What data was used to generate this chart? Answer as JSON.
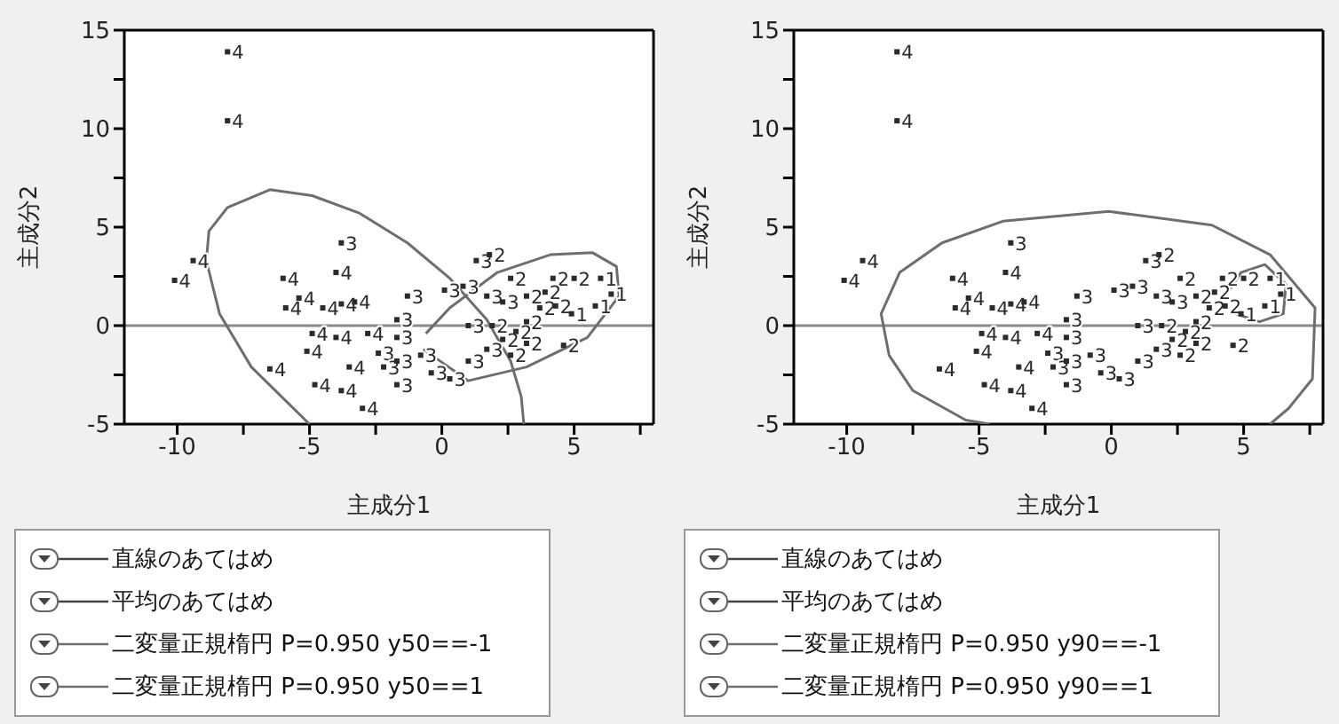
{
  "chart_data": [
    {
      "type": "scatter",
      "xlabel": "主成分1",
      "ylabel": "主成分2",
      "xlim": [
        -12,
        8
      ],
      "ylim": [
        -5,
        15
      ],
      "xticks": [
        -10,
        {
          "value": -7.5,
          "label": null
        },
        -5,
        {
          "value": -2.5,
          "label": null
        },
        0,
        {
          "value": 2.5,
          "label": null
        },
        5,
        {
          "value": 7.5,
          "label": null
        }
      ],
      "yticks": [
        -5,
        {
          "value": -2.5,
          "label": null
        },
        0,
        {
          "value": 2.5,
          "label": null
        },
        5,
        {
          "value": 7.5,
          "label": null
        },
        10,
        {
          "value": 12.5,
          "label": null
        },
        15
      ],
      "marker": "square",
      "legend": "bottom",
      "annotations": [
        "直線のあてはめ",
        "平均のあてはめ"
      ],
      "ref_lines": [
        {
          "axis": "y",
          "value": 0,
          "color": "#8a8a8a"
        }
      ],
      "series": [
        {
          "name": "4",
          "color": "#2b2b2b",
          "x": [
            -8.1,
            -8.1,
            -9.4,
            -10.1,
            -6.0,
            -4.0,
            -5.9,
            -5.4,
            -4.5,
            -3.8,
            -3.3,
            -4.9,
            -4.0,
            -5.1,
            -6.5,
            -4.8,
            -3.8,
            -3.0,
            -3.5,
            -2.8
          ],
          "values": [
            13.9,
            10.4,
            3.3,
            2.3,
            2.4,
            2.7,
            0.9,
            1.4,
            0.9,
            1.1,
            1.2,
            -0.4,
            -0.6,
            -1.3,
            -2.2,
            -3.0,
            -3.3,
            -4.2,
            -2.1,
            -0.4
          ]
        },
        {
          "name": "3",
          "color": "#2b2b2b",
          "x": [
            -3.8,
            -1.3,
            1.3,
            0.1,
            0.8,
            -1.7,
            -1.7,
            -2.4,
            -2.2,
            -1.7,
            -0.4,
            0.3,
            1.0,
            1.7,
            1.0,
            1.7,
            2.3,
            -0.8,
            -1.7
          ],
          "values": [
            4.2,
            1.5,
            3.3,
            1.8,
            2.0,
            0.3,
            -0.6,
            -1.4,
            -2.1,
            -3.0,
            -2.4,
            -2.7,
            -1.8,
            -1.2,
            0.0,
            1.5,
            1.2,
            -1.5,
            -1.8
          ]
        },
        {
          "name": "2",
          "color": "#2b2b2b",
          "x": [
            1.8,
            2.6,
            3.2,
            4.2,
            3.9,
            3.7,
            4.3,
            4.6,
            2.6,
            2.3,
            2.8,
            3.2,
            5.0,
            1.9,
            3.2
          ],
          "values": [
            3.6,
            2.4,
            1.5,
            2.4,
            1.7,
            0.9,
            1.0,
            -1.0,
            -1.5,
            -0.7,
            -0.3,
            0.2,
            2.4,
            0.0,
            -0.9
          ]
        },
        {
          "name": "1",
          "color": "#2b2b2b",
          "x": [
            6.0,
            6.4,
            5.8,
            4.9
          ],
          "values": [
            2.4,
            1.6,
            1.0,
            0.6
          ]
        },
        {
          "name": "二変量正規楕円 P=0.950 y50==-1",
          "type": "line",
          "marker": "none",
          "color": "#6e6e6e",
          "x": [
            -5.0,
            -7.2,
            -8.4,
            -8.9,
            -8.8,
            -8.1,
            -6.5,
            -4.9,
            -3.1,
            -1.3,
            0.3,
            1.7,
            2.6,
            3.0,
            3.1
          ],
          "values": [
            -5,
            -2.1,
            0.6,
            3.3,
            4.8,
            6.0,
            6.9,
            6.6,
            5.7,
            4.2,
            2.4,
            0.3,
            -1.8,
            -3.6,
            -5
          ]
        },
        {
          "name": "二変量正規楕円 P=0.950 y50==1",
          "type": "line",
          "marker": "none",
          "color": "#6e6e6e",
          "x": [
            -0.7,
            1.0,
            3.2,
            5.5,
            6.7,
            6.6,
            5.7,
            4.1,
            2.1,
            0.3,
            -0.6
          ],
          "values": [
            -1.2,
            -2.8,
            -2.1,
            -0.6,
            1.5,
            3.0,
            3.7,
            3.6,
            2.7,
            0.9,
            -0.4
          ]
        }
      ]
    },
    {
      "type": "scatter",
      "xlabel": "主成分1",
      "ylabel": "主成分2",
      "xlim": [
        -12,
        8
      ],
      "ylim": [
        -5,
        15
      ],
      "xticks": [
        -10,
        {
          "value": -7.5,
          "label": null
        },
        -5,
        {
          "value": -2.5,
          "label": null
        },
        0,
        {
          "value": 2.5,
          "label": null
        },
        5,
        {
          "value": 7.5,
          "label": null
        }
      ],
      "yticks": [
        -5,
        {
          "value": -2.5,
          "label": null
        },
        0,
        {
          "value": 2.5,
          "label": null
        },
        5,
        {
          "value": 7.5,
          "label": null
        },
        10,
        {
          "value": 12.5,
          "label": null
        },
        15
      ],
      "marker": "square",
      "legend": "bottom",
      "annotations": [
        "直線のあてはめ",
        "平均のあてはめ"
      ],
      "ref_lines": [
        {
          "axis": "y",
          "value": 0,
          "color": "#8a8a8a"
        }
      ],
      "series": [
        {
          "name": "4",
          "color": "#2b2b2b",
          "x": [
            -8.1,
            -8.1,
            -9.4,
            -10.1,
            -6.0,
            -4.0,
            -5.9,
            -5.4,
            -4.5,
            -3.8,
            -3.3,
            -4.9,
            -4.0,
            -5.1,
            -6.5,
            -4.8,
            -3.8,
            -3.0,
            -3.5,
            -2.8
          ],
          "values": [
            13.9,
            10.4,
            3.3,
            2.3,
            2.4,
            2.7,
            0.9,
            1.4,
            0.9,
            1.1,
            1.2,
            -0.4,
            -0.6,
            -1.3,
            -2.2,
            -3.0,
            -3.3,
            -4.2,
            -2.1,
            -0.4
          ]
        },
        {
          "name": "3",
          "color": "#2b2b2b",
          "x": [
            -3.8,
            -1.3,
            1.3,
            0.1,
            0.8,
            -1.7,
            -1.7,
            -2.4,
            -2.2,
            -1.7,
            -0.4,
            0.3,
            1.0,
            1.7,
            1.0,
            1.7,
            2.3,
            -0.8,
            -1.7
          ],
          "values": [
            4.2,
            1.5,
            3.3,
            1.8,
            2.0,
            0.3,
            -0.6,
            -1.4,
            -2.1,
            -3.0,
            -2.4,
            -2.7,
            -1.8,
            -1.2,
            0.0,
            1.5,
            1.2,
            -1.5,
            -1.8
          ]
        },
        {
          "name": "2",
          "color": "#2b2b2b",
          "x": [
            1.8,
            2.6,
            3.2,
            4.2,
            3.9,
            3.7,
            4.3,
            4.6,
            2.6,
            2.3,
            2.8,
            3.2,
            5.0,
            1.9,
            3.2
          ],
          "values": [
            3.6,
            2.4,
            1.5,
            2.4,
            1.7,
            0.9,
            1.0,
            -1.0,
            -1.5,
            -0.7,
            -0.3,
            0.2,
            2.4,
            0.0,
            -0.9
          ]
        },
        {
          "name": "1",
          "color": "#2b2b2b",
          "x": [
            6.0,
            6.4,
            5.8,
            4.9
          ],
          "values": [
            2.4,
            1.6,
            1.0,
            0.6
          ]
        },
        {
          "name": "二変量正規楕円 P=0.950 y90==-1",
          "type": "line",
          "marker": "none",
          "color": "#6e6e6e",
          "x": [
            -4.6,
            -5.5,
            -7.5,
            -8.4,
            -8.7,
            -8.0,
            -6.4,
            -4.1,
            -0.1,
            3.8,
            6.0,
            7.7,
            7.6,
            6.7,
            6.0
          ],
          "values": [
            -5,
            -4.8,
            -3.3,
            -1.5,
            0.6,
            2.7,
            4.2,
            5.3,
            5.8,
            5.1,
            3.6,
            0.9,
            -2.7,
            -4.2,
            -5
          ]
        },
        {
          "name": "二変量正規楕円 P=0.950 y90==1",
          "type": "line",
          "marker": "none",
          "color": "#6e6e6e",
          "x": [
            4.3,
            4.9,
            5.8,
            6.6,
            6.5,
            5.6,
            4.7
          ],
          "values": [
            1.5,
            2.7,
            3.1,
            2.1,
            0.6,
            0.2,
            0.6
          ]
        }
      ]
    }
  ]
}
